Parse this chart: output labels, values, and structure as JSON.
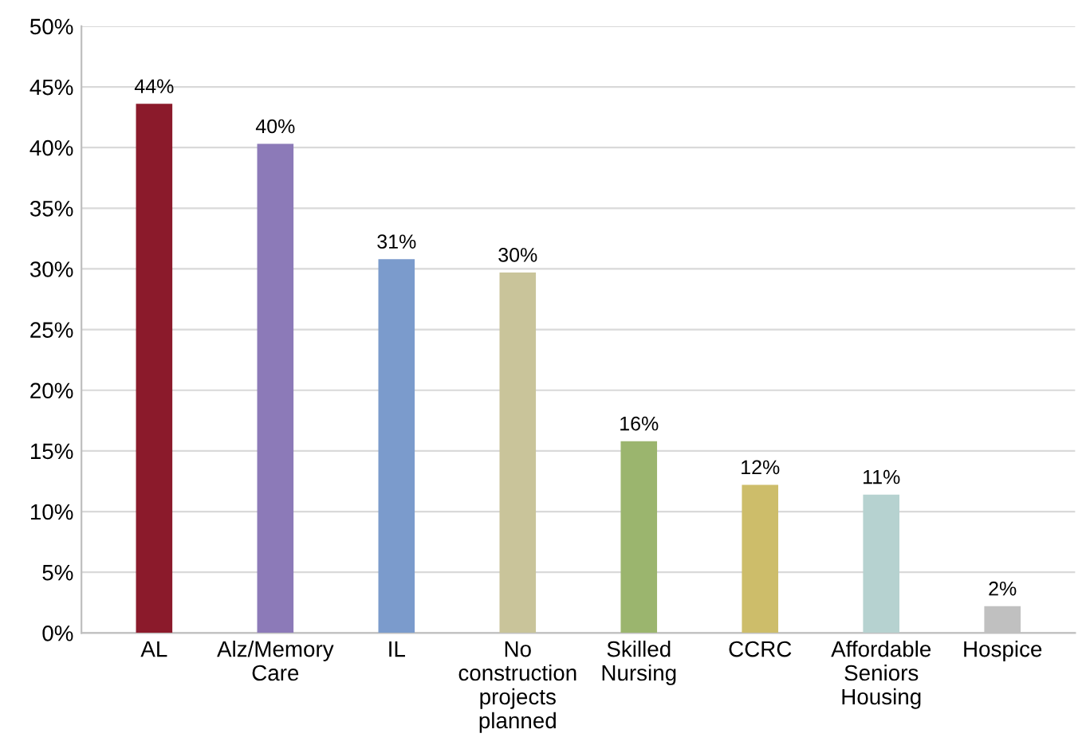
{
  "chart_data": {
    "type": "bar",
    "categories": [
      "AL",
      "Alz/Memory\nCare",
      "IL",
      "No\nconstruction\nprojects\nplanned",
      "Skilled\nNursing",
      "CCRC",
      "Affordable\nSeniors\nHousing",
      "Hospice"
    ],
    "values": [
      43.6,
      40.3,
      30.8,
      29.7,
      15.8,
      12.2,
      11.4,
      2.2
    ],
    "value_labels": [
      "44%",
      "40%",
      "31%",
      "30%",
      "16%",
      "12%",
      "11%",
      "2%"
    ],
    "colors": [
      "#8b1a2b",
      "#8c7ab8",
      "#7b9bcc",
      "#c9c49a",
      "#9bb56e",
      "#cdbd6a",
      "#b6d2d0",
      "#c0c0c0"
    ],
    "ylim": [
      0,
      50
    ],
    "yticks": [
      {
        "value": 0,
        "label": "0%"
      },
      {
        "value": 5,
        "label": "5%"
      },
      {
        "value": 10,
        "label": "10%"
      },
      {
        "value": 15,
        "label": "15%"
      },
      {
        "value": 20,
        "label": "20%"
      },
      {
        "value": 25,
        "label": "25%"
      },
      {
        "value": 30,
        "label": "30%"
      },
      {
        "value": 35,
        "label": "35%"
      },
      {
        "value": 40,
        "label": "40%"
      },
      {
        "value": 45,
        "label": "45%"
      },
      {
        "value": 50,
        "label": "50%"
      }
    ],
    "grid": "y",
    "legend": false
  }
}
